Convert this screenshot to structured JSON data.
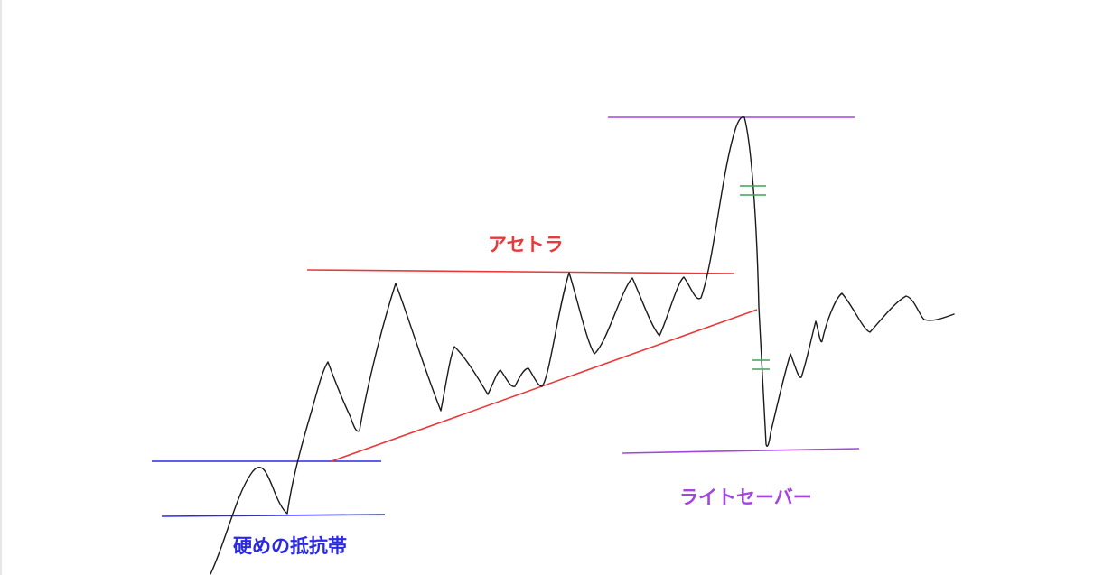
{
  "labels": {
    "ascending_triangle": "アセトラ",
    "lightsaber": "ライトセーバー",
    "resistance_zone": "硬めの抵抗帯"
  },
  "colors": {
    "background": "#ffffff",
    "price_line": "#1a1a1a",
    "ascending_triangle": "#e83a3a",
    "lightsaber": "#a445e0",
    "resistance_zone": "#2a2ae6",
    "equal_marks": "#3fa35a"
  }
}
